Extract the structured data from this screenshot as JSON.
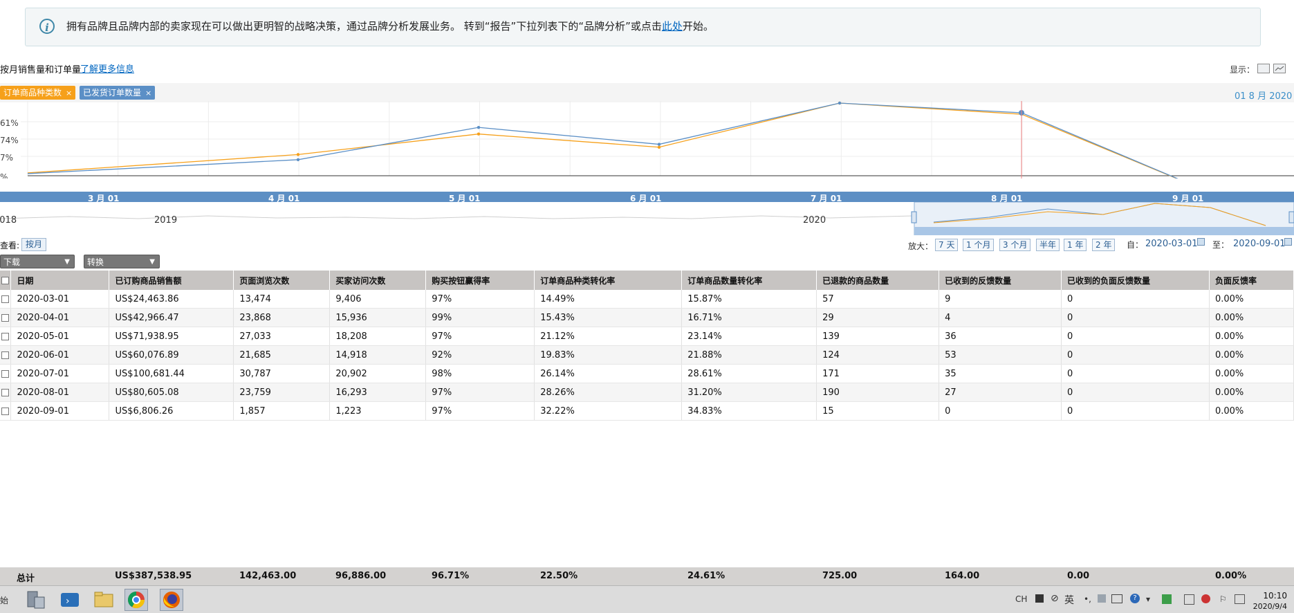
{
  "banner": {
    "text_prefix": "拥有品牌且品牌内部的卖家现在可以做出更明智的战略决策，通过品牌分析发展业务。 转到“报告”下拉列表下的“品牌分析”或点击",
    "link": "此处",
    "text_suffix": "开始。"
  },
  "header": {
    "title": "按月销售量和订单量",
    "learn_more": "了解更多信息",
    "display_label": "显示："
  },
  "tags": [
    {
      "label": "订单商品种类数",
      "color": "#f6a01a"
    },
    {
      "label": "已发货订单数量",
      "color": "#5b8fc6"
    }
  ],
  "tag_close": "×",
  "selected_date": "01 8 月 2020",
  "chart_data": {
    "type": "line",
    "x": [
      "3 月 01",
      "4 月 01",
      "5 月 01",
      "6 月 01",
      "7 月 01",
      "8 月 01",
      "9 月 01"
    ],
    "y_tick_labels": [
      "61%",
      "74%",
      "7%",
      "%"
    ],
    "series": [
      {
        "name": "订单商品种类数",
        "color": "#f6a01a",
        "values": [
          2,
          27,
          55,
          37,
          100,
          82,
          -20
        ]
      },
      {
        "name": "已发货订单数量",
        "color": "#5b8fc6",
        "values": [
          1,
          20,
          64,
          41,
          100,
          84,
          -20
        ]
      }
    ],
    "navigator_labels": [
      "2018",
      "2019",
      "2020"
    ],
    "grid": true
  },
  "controls": {
    "view_label": "查看:",
    "view_button": "按月",
    "zoom_label": "放大：",
    "zoom_buttons": [
      "7 天",
      "1 个月",
      "3 个月",
      "半年",
      "1 年",
      "2 年"
    ],
    "from_label": "自：",
    "from_date": "2020-03-01",
    "to_label": "至：",
    "to_date": "2020-09-01",
    "download": "下载",
    "convert": "转换"
  },
  "table": {
    "columns": [
      "日期",
      "已订购商品销售额",
      "页面浏览次数",
      "买家访问次数",
      "购买按钮赢得率",
      "订单商品种类转化率",
      "订单商品数量转化率",
      "已退款的商品数量",
      "已收到的反馈数量",
      "已收到的负面反馈数量",
      "负面反馈率"
    ],
    "rows": [
      [
        "2020-03-01",
        "US$24,463.86",
        "13,474",
        "9,406",
        "97%",
        "14.49%",
        "15.87%",
        "57",
        "9",
        "0",
        "0.00%"
      ],
      [
        "2020-04-01",
        "US$42,966.47",
        "23,868",
        "15,936",
        "99%",
        "15.43%",
        "16.71%",
        "29",
        "4",
        "0",
        "0.00%"
      ],
      [
        "2020-05-01",
        "US$71,938.95",
        "27,033",
        "18,208",
        "97%",
        "21.12%",
        "23.14%",
        "139",
        "36",
        "0",
        "0.00%"
      ],
      [
        "2020-06-01",
        "US$60,076.89",
        "21,685",
        "14,918",
        "92%",
        "19.83%",
        "21.88%",
        "124",
        "53",
        "0",
        "0.00%"
      ],
      [
        "2020-07-01",
        "US$100,681.44",
        "30,787",
        "20,902",
        "98%",
        "26.14%",
        "28.61%",
        "171",
        "35",
        "0",
        "0.00%"
      ],
      [
        "2020-08-01",
        "US$80,605.08",
        "23,759",
        "16,293",
        "97%",
        "28.26%",
        "31.20%",
        "190",
        "27",
        "0",
        "0.00%"
      ],
      [
        "2020-09-01",
        "US$6,806.26",
        "1,857",
        "1,223",
        "97%",
        "32.22%",
        "34.83%",
        "15",
        "0",
        "0",
        "0.00%"
      ]
    ],
    "totals": [
      "总计",
      "US$387,538.95",
      "142,463.00",
      "96,886.00",
      "96.71%",
      "22.50%",
      "24.61%",
      "725.00",
      "164.00",
      "0.00",
      "0.00%"
    ]
  },
  "taskbar": {
    "start_label": "始",
    "tray_text": [
      "CH",
      "英"
    ],
    "time": "10:10",
    "date": "2020/9/4"
  }
}
